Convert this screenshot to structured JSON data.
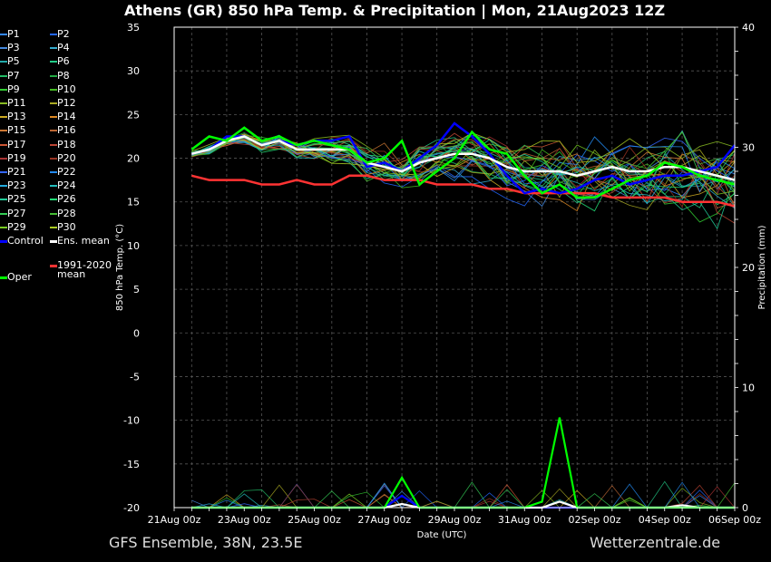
{
  "title": "Athens  (GR)  850 hPa Temp. & Precipitation | Mon, 21Aug2023 12Z",
  "footer_left": "GFS Ensemble, 38N, 23.5E",
  "footer_right": "Wetterzentrale.de",
  "chart_data": {
    "type": "line",
    "xlabel": "Date (UTC)",
    "ylabel": "850 hPa Temp. (°C)",
    "y2label": "Precipitation (mm)",
    "ylim": [
      -20,
      35
    ],
    "y2lim": [
      0,
      40
    ],
    "yticks": [
      -20,
      -15,
      -10,
      -5,
      0,
      5,
      10,
      15,
      20,
      25,
      30,
      35
    ],
    "y2ticks": [
      0,
      10,
      20,
      30,
      40
    ],
    "xticks": [
      "21Aug 00z",
      "23Aug 00z",
      "25Aug 00z",
      "27Aug 00z",
      "29Aug 00z",
      "31Aug 00z",
      "02Sep 00z",
      "04Sep 00z",
      "06Sep 00z"
    ],
    "grid": true,
    "legend_position": "left",
    "x_days_start": "21Aug 00z",
    "x_days_end": "06Sep 00z",
    "series": [
      {
        "name": "Oper",
        "color": "#00ff00",
        "x_days": [
          0.5,
          1,
          1.5,
          2,
          2.5,
          3,
          3.5,
          4,
          4.5,
          5,
          5.5,
          6,
          6.5,
          7,
          7.5,
          8,
          8.5,
          9,
          9.5,
          10,
          10.5,
          11,
          11.5,
          12,
          12.5,
          13,
          13.5,
          14,
          14.5,
          15,
          15.5,
          16
        ],
        "values": [
          21,
          22.5,
          22,
          23.5,
          22,
          22.5,
          21.5,
          22,
          21.5,
          21,
          19.5,
          20,
          22,
          17,
          18.5,
          20,
          23,
          21,
          20.5,
          18,
          16,
          17,
          15.5,
          15.5,
          16.5,
          17.5,
          18,
          19.5,
          19,
          18,
          17.5,
          17
        ],
        "precip": [
          0,
          0,
          0,
          0,
          0,
          0,
          0,
          0,
          0,
          0,
          0,
          0,
          2.5,
          0,
          0,
          0,
          0,
          0,
          0,
          0,
          0.5,
          7.5,
          0,
          0,
          0,
          0,
          0,
          0,
          0,
          0,
          0,
          0
        ]
      },
      {
        "name": "Control",
        "color": "#0000ff",
        "x_days": [
          0.5,
          1,
          1.5,
          2,
          2.5,
          3,
          3.5,
          4,
          4.5,
          5,
          5.5,
          6,
          6.5,
          7,
          7.5,
          8,
          8.5,
          9,
          9.5,
          10,
          10.5,
          11,
          11.5,
          12,
          12.5,
          13,
          13.5,
          14,
          14.5,
          15,
          15.5,
          16
        ],
        "values": [
          20.5,
          21,
          22.5,
          22.5,
          21.5,
          22,
          21.5,
          22,
          22,
          22.5,
          19,
          19.5,
          18.5,
          20,
          21.5,
          24,
          22.5,
          20.5,
          18,
          16,
          16.5,
          16,
          16.5,
          17.5,
          18,
          17,
          17.5,
          18,
          18,
          18.5,
          19,
          21.5
        ],
        "precip": [
          0,
          0,
          0,
          0,
          0,
          0,
          0,
          0,
          0,
          0,
          0,
          0,
          1,
          0,
          0,
          0,
          0,
          0,
          0,
          0,
          0,
          0,
          0,
          0,
          0,
          0,
          0,
          0,
          0,
          0,
          0,
          0
        ]
      },
      {
        "name": "Ens. mean",
        "color": "#ffffff",
        "x_days": [
          0.5,
          1,
          1.5,
          2,
          2.5,
          3,
          3.5,
          4,
          4.5,
          5,
          5.5,
          6,
          6.5,
          7,
          7.5,
          8,
          8.5,
          9,
          9.5,
          10,
          10.5,
          11,
          11.5,
          12,
          12.5,
          13,
          13.5,
          14,
          14.5,
          15,
          15.5,
          16
        ],
        "values": [
          20.5,
          21,
          22,
          22.5,
          21.5,
          22,
          21,
          21,
          21,
          21,
          19.5,
          19,
          18.5,
          19.5,
          20,
          20.5,
          20.5,
          20,
          19,
          18.5,
          18.5,
          18.5,
          18,
          18.5,
          19,
          18.5,
          18.5,
          19,
          19,
          18.5,
          18,
          17.5
        ],
        "precip": [
          0,
          0,
          0,
          0,
          0,
          0,
          0,
          0,
          0,
          0,
          0,
          0,
          0.3,
          0,
          0,
          0,
          0,
          0,
          0,
          0,
          0,
          0.5,
          0,
          0,
          0,
          0,
          0,
          0,
          0.2,
          0,
          0,
          0
        ]
      },
      {
        "name": "1991-2020 mean",
        "color": "#ff3333",
        "x_days": [
          0.5,
          1,
          1.5,
          2,
          2.5,
          3,
          3.5,
          4,
          4.5,
          5,
          5.5,
          6,
          6.5,
          7,
          7.5,
          8,
          8.5,
          9,
          9.5,
          10,
          10.5,
          11,
          11.5,
          12,
          12.5,
          13,
          13.5,
          14,
          14.5,
          15,
          15.5,
          16
        ],
        "values": [
          18,
          17.5,
          17.5,
          17.5,
          17,
          17,
          17.5,
          17,
          17,
          18,
          18,
          17.5,
          17.5,
          17.5,
          17,
          17,
          17,
          16.5,
          16.5,
          16,
          16,
          16,
          16,
          16,
          15.5,
          15.5,
          15.5,
          15.5,
          15,
          15,
          15,
          14.5
        ]
      }
    ]
  },
  "legend": [
    {
      "label": "P1",
      "color": "#3388ff"
    },
    {
      "label": "P2",
      "color": "#2266ff"
    },
    {
      "label": "P3",
      "color": "#4488dd"
    },
    {
      "label": "P4",
      "color": "#33aacc"
    },
    {
      "label": "P5",
      "color": "#22aaaa"
    },
    {
      "label": "P6",
      "color": "#22cc88"
    },
    {
      "label": "P7",
      "color": "#22bb66"
    },
    {
      "label": "P8",
      "color": "#22aa44"
    },
    {
      "label": "P9",
      "color": "#33cc33"
    },
    {
      "label": "P10",
      "color": "#44bb22"
    },
    {
      "label": "P11",
      "color": "#88bb22"
    },
    {
      "label": "P12",
      "color": "#aaaa22"
    },
    {
      "label": "P13",
      "color": "#ccaa22"
    },
    {
      "label": "P14",
      "color": "#dd8822"
    },
    {
      "label": "P15",
      "color": "#cc7733"
    },
    {
      "label": "P16",
      "color": "#bb6633"
    },
    {
      "label": "P17",
      "color": "#cc5533"
    },
    {
      "label": "P18",
      "color": "#bb4433"
    },
    {
      "label": "P19",
      "color": "#aa3333"
    },
    {
      "label": "P20",
      "color": "#993322"
    },
    {
      "label": "P21",
      "color": "#3366ff"
    },
    {
      "label": "P22",
      "color": "#2288ee"
    },
    {
      "label": "P23",
      "color": "#22aadd"
    },
    {
      "label": "P24",
      "color": "#22bbbb"
    },
    {
      "label": "P25",
      "color": "#22cc99"
    },
    {
      "label": "P26",
      "color": "#22dd77"
    },
    {
      "label": "P27",
      "color": "#33cc55"
    },
    {
      "label": "P28",
      "color": "#44bb33"
    },
    {
      "label": "P29",
      "color": "#77cc22"
    },
    {
      "label": "P30",
      "color": "#aacc22"
    },
    {
      "label": "Control",
      "color": "#0000ff"
    },
    {
      "label": "Ens. mean",
      "color": "#ffffff"
    },
    {
      "label": "1991-2020",
      "color": "#ff3333"
    },
    {
      "label": "mean",
      "color": ""
    },
    {
      "label": "Oper",
      "color": "#00ff00"
    }
  ]
}
